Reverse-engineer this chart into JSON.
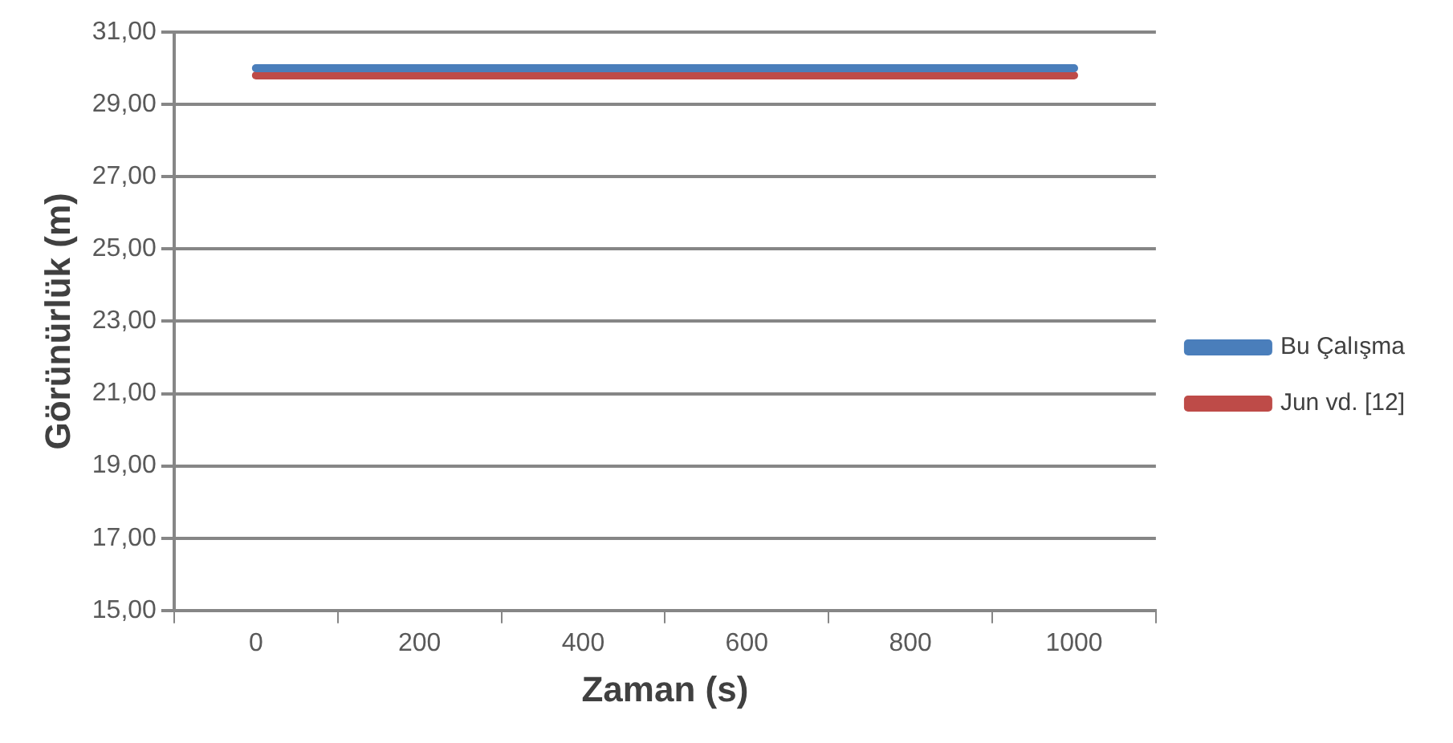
{
  "chart_data": {
    "type": "line",
    "xlabel": "Zaman (s)",
    "ylabel": "Görünürlük (m)",
    "categories": [
      "0",
      "200",
      "400",
      "600",
      "800",
      "1000"
    ],
    "series": [
      {
        "name": "Bu Çalışma",
        "color": "#4a7ebb",
        "values": [
          30.0,
          30.0,
          30.0,
          30.0,
          30.0,
          30.0
        ]
      },
      {
        "name": "Jun vd. [12]",
        "color": "#be4b48",
        "values": [
          29.8,
          29.8,
          29.8,
          29.8,
          29.8,
          29.8
        ]
      }
    ],
    "ylim": [
      15,
      31
    ],
    "yticks": [
      {
        "value": 15,
        "label": "15,00"
      },
      {
        "value": 17,
        "label": "17,00"
      },
      {
        "value": 19,
        "label": "19,00"
      },
      {
        "value": 21,
        "label": "21,00"
      },
      {
        "value": 23,
        "label": "23,00"
      },
      {
        "value": 25,
        "label": "25,00"
      },
      {
        "value": 27,
        "label": "27,00"
      },
      {
        "value": 29,
        "label": "29,00"
      },
      {
        "value": 31,
        "label": "31,00"
      }
    ],
    "grid": "y",
    "legend": "right",
    "marker": "none",
    "line_style": "solid"
  }
}
